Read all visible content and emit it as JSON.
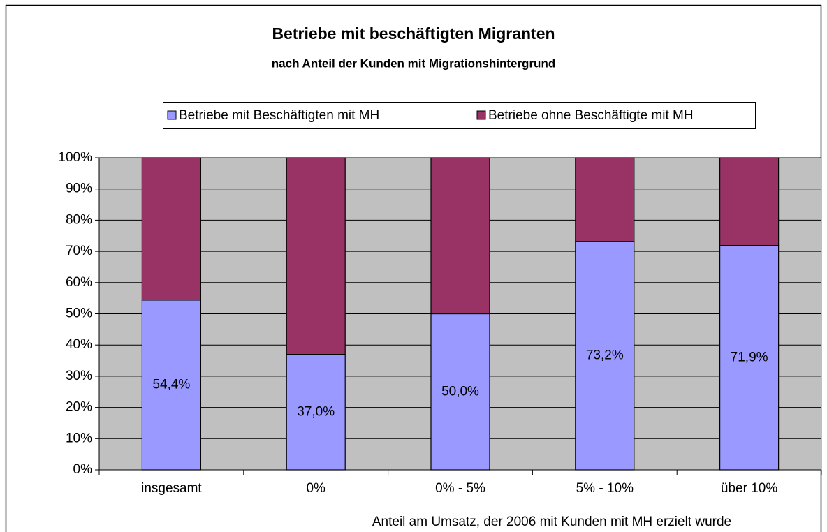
{
  "chart_data": {
    "type": "stacked_bar",
    "title": "Betriebe mit beschäftigten Migranten",
    "subtitle": "nach Anteil der Kunden mit Migrationshintergrund",
    "x_label": "Anteil am Umsatz, der 2006 mit Kunden mit MH erzielt wurde",
    "categories": [
      "insgesamt",
      "0%",
      "0% - 5%",
      "5% - 10%",
      "über 10%"
    ],
    "series": [
      {
        "name": "Betriebe mit Beschäftigten mit MH",
        "color": "#9999ff",
        "values": [
          54.4,
          37.0,
          50.0,
          73.2,
          71.9
        ],
        "value_labels": [
          "54,4%",
          "37,0%",
          "50,0%",
          "73,2%",
          "71,9%"
        ]
      },
      {
        "name": "Betriebe ohne Beschäftigte mit MH",
        "color": "#993366",
        "values": [
          45.6,
          63.0,
          50.0,
          26.8,
          28.1
        ]
      }
    ],
    "ylim": [
      0,
      100
    ],
    "yticks": [
      {
        "value": 0,
        "label": "0%"
      },
      {
        "value": 10,
        "label": "10%"
      },
      {
        "value": 20,
        "label": "20%"
      },
      {
        "value": 30,
        "label": "30%"
      },
      {
        "value": 40,
        "label": "40%"
      },
      {
        "value": 50,
        "label": "50%"
      },
      {
        "value": 60,
        "label": "60%"
      },
      {
        "value": 70,
        "label": "70%"
      },
      {
        "value": 80,
        "label": "80%"
      },
      {
        "value": 90,
        "label": "90%"
      },
      {
        "value": 100,
        "label": "100%"
      }
    ],
    "grid": true,
    "legend": "top"
  }
}
